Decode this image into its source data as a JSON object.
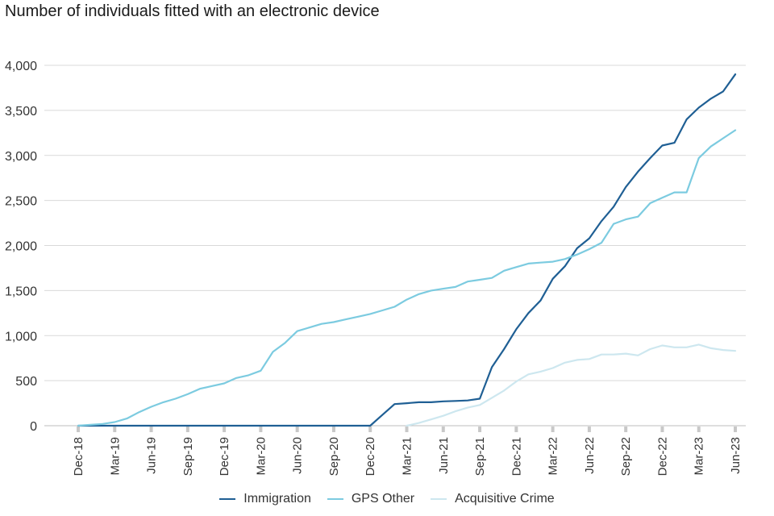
{
  "chart_data": {
    "type": "line",
    "title": "Number of individuals fitted with an electronic device",
    "xlabel": "",
    "ylabel": "",
    "ylim": [
      0,
      4000
    ],
    "y_ticks": [
      0,
      500,
      1000,
      1500,
      2000,
      2500,
      3000,
      3500,
      4000
    ],
    "y_tick_labels": [
      "0",
      "500",
      "1,000",
      "1,500",
      "2,000",
      "2,500",
      "3,000",
      "3,500",
      "4,000"
    ],
    "x": [
      "Dec-18",
      "Jan-19",
      "Feb-19",
      "Mar-19",
      "Apr-19",
      "May-19",
      "Jun-19",
      "Jul-19",
      "Aug-19",
      "Sep-19",
      "Oct-19",
      "Nov-19",
      "Dec-19",
      "Jan-20",
      "Feb-20",
      "Mar-20",
      "Apr-20",
      "May-20",
      "Jun-20",
      "Jul-20",
      "Aug-20",
      "Sep-20",
      "Oct-20",
      "Nov-20",
      "Dec-20",
      "Jan-21",
      "Feb-21",
      "Mar-21",
      "Apr-21",
      "May-21",
      "Jun-21",
      "Jul-21",
      "Aug-21",
      "Sep-21",
      "Oct-21",
      "Nov-21",
      "Dec-21",
      "Jan-22",
      "Feb-22",
      "Mar-22",
      "Apr-22",
      "May-22",
      "Jun-22",
      "Jul-22",
      "Aug-22",
      "Sep-22",
      "Oct-22",
      "Nov-22",
      "Dec-22",
      "Jan-23",
      "Feb-23",
      "Mar-23",
      "Apr-23",
      "May-23",
      "Jun-23"
    ],
    "x_tick_labels": [
      "Dec-18",
      "Mar-19",
      "Jun-19",
      "Sep-19",
      "Dec-19",
      "Mar-20",
      "Jun-20",
      "Sep-20",
      "Dec-20",
      "Mar-21",
      "Jun-21",
      "Sep-21",
      "Dec-21",
      "Mar-22",
      "Jun-22",
      "Sep-22",
      "Dec-22",
      "Mar-23",
      "Jun-23"
    ],
    "grid": true,
    "legend_position": "bottom",
    "series": [
      {
        "name": "Immigration",
        "color": "#1f5f94",
        "values": [
          0,
          0,
          0,
          0,
          0,
          0,
          0,
          0,
          0,
          0,
          0,
          0,
          0,
          0,
          0,
          0,
          0,
          0,
          0,
          0,
          0,
          0,
          0,
          0,
          0,
          120,
          240,
          250,
          260,
          260,
          270,
          275,
          280,
          300,
          650,
          850,
          1070,
          1250,
          1390,
          1630,
          1770,
          1970,
          2080,
          2270,
          2430,
          2650,
          2820,
          2970,
          3110,
          3140,
          3400,
          3530,
          3630,
          3710,
          3900
        ]
      },
      {
        "name": "GPS Other",
        "color": "#7ccbe0",
        "values": [
          0,
          10,
          20,
          40,
          80,
          150,
          210,
          260,
          300,
          350,
          410,
          440,
          470,
          530,
          560,
          610,
          820,
          920,
          1050,
          1090,
          1130,
          1150,
          1180,
          1210,
          1240,
          1280,
          1320,
          1400,
          1460,
          1500,
          1520,
          1540,
          1600,
          1620,
          1640,
          1720,
          1760,
          1800,
          1810,
          1820,
          1850,
          1900,
          1960,
          2030,
          2240,
          2290,
          2320,
          2470,
          2530,
          2590,
          2590,
          2970,
          3100,
          3190,
          3280
        ]
      },
      {
        "name": "Acquisitive Crime",
        "color": "#cde7ef",
        "values": [
          null,
          null,
          null,
          null,
          null,
          null,
          null,
          null,
          null,
          null,
          null,
          null,
          null,
          null,
          null,
          null,
          null,
          null,
          null,
          null,
          null,
          null,
          null,
          null,
          null,
          null,
          null,
          0,
          30,
          70,
          110,
          160,
          200,
          230,
          310,
          390,
          490,
          570,
          600,
          640,
          700,
          730,
          740,
          790,
          790,
          800,
          780,
          850,
          890,
          870,
          870,
          900,
          860,
          840,
          830
        ]
      }
    ]
  }
}
